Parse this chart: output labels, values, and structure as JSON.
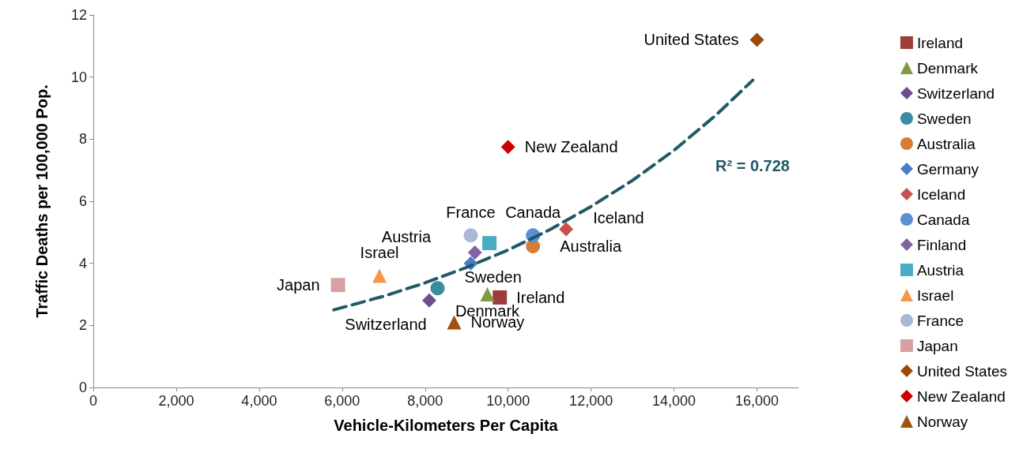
{
  "chart_data": {
    "type": "scatter",
    "xlabel": "Vehicle-Kilometers Per Capita",
    "ylabel": "Traffic Deaths per 100,000 Pop.",
    "xlim": [
      0,
      17000
    ],
    "xticks": [
      0,
      {
        "value": 2000,
        "label": "2,000"
      },
      {
        "value": 4000,
        "label": "4,000"
      },
      {
        "value": 6000,
        "label": "6,000"
      },
      {
        "value": 8000,
        "label": "8,000"
      },
      {
        "value": 10000,
        "label": "10,000"
      },
      {
        "value": 12000,
        "label": "12,000"
      },
      {
        "value": 14000,
        "label": "14,000"
      },
      {
        "value": 16000,
        "label": "16,000"
      }
    ],
    "ylim": [
      0,
      12
    ],
    "yticks": [
      0,
      2,
      4,
      6,
      8,
      10,
      12
    ],
    "grid": false,
    "legend": "right",
    "annotations": [
      "R² = 0.728"
    ],
    "series": [
      {
        "name": "Ireland",
        "color": "#9e3b3b",
        "marker": "square",
        "x": [
          9800
        ],
        "values": [
          2.9
        ]
      },
      {
        "name": "Denmark",
        "color": "#7f9a41",
        "marker": "triangle",
        "x": [
          9500
        ],
        "values": [
          3.0
        ]
      },
      {
        "name": "Switzerland",
        "color": "#6a4f8c",
        "marker": "diamond",
        "x": [
          8100
        ],
        "values": [
          2.8
        ]
      },
      {
        "name": "Sweden",
        "color": "#3a8ca0",
        "marker": "circle",
        "x": [
          8300
        ],
        "values": [
          3.2
        ]
      },
      {
        "name": "Australia",
        "color": "#d47f35",
        "marker": "circle",
        "x": [
          10600
        ],
        "values": [
          4.55
        ]
      },
      {
        "name": "Germany",
        "color": "#4a7ec2",
        "marker": "diamond",
        "x": [
          9100
        ],
        "values": [
          4.0
        ]
      },
      {
        "name": "Iceland",
        "color": "#c9504c",
        "marker": "diamond",
        "x": [
          11400
        ],
        "values": [
          5.1
        ]
      },
      {
        "name": "Canada",
        "color": "#5b8fd6",
        "marker": "circle",
        "x": [
          10600
        ],
        "values": [
          4.9
        ]
      },
      {
        "name": "Finland",
        "color": "#8064a2",
        "marker": "diamond",
        "x": [
          9200
        ],
        "values": [
          4.35
        ]
      },
      {
        "name": "Austria",
        "color": "#4bacc6",
        "marker": "square",
        "x": [
          9550
        ],
        "values": [
          4.65
        ]
      },
      {
        "name": "Israel",
        "color": "#f79646",
        "marker": "triangle",
        "x": [
          6900
        ],
        "values": [
          3.6
        ]
      },
      {
        "name": "France",
        "color": "#a8b9d8",
        "marker": "circle",
        "x": [
          9100
        ],
        "values": [
          4.9
        ]
      },
      {
        "name": "Japan",
        "color": "#d9a0a4",
        "marker": "square",
        "x": [
          5900
        ],
        "values": [
          3.3
        ]
      },
      {
        "name": "United States",
        "color": "#9c4a0a",
        "marker": "diamond",
        "x": [
          16000
        ],
        "values": [
          11.2
        ]
      },
      {
        "name": "New Zealand",
        "color": "#cc0000",
        "marker": "diamond",
        "x": [
          10000
        ],
        "values": [
          7.75
        ]
      },
      {
        "name": "Norway",
        "color": "#a0520f",
        "marker": "triangle",
        "x": [
          8700
        ],
        "values": [
          2.1
        ]
      },
      {
        "type": "line",
        "color": "#215968",
        "marker": "none",
        "line_style": "dashed",
        "x": [
          5800,
          7000,
          8000,
          9000,
          10000,
          11000,
          12000,
          13000,
          14000,
          15000,
          15900
        ],
        "values": [
          2.5,
          2.94,
          3.37,
          3.87,
          4.43,
          5.08,
          5.83,
          6.67,
          7.64,
          8.76,
          9.9
        ]
      }
    ]
  }
}
